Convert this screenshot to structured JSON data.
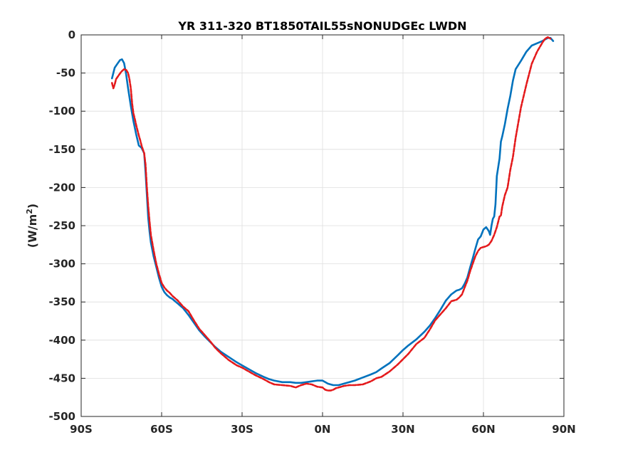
{
  "chart_data": {
    "type": "line",
    "title": "YR 311-320 BT1850TAIL55sNONUDGEc LWDN",
    "xlabel": "",
    "ylabel": "(W/m",
    "ylabel_superscript": "2",
    "ylabel_suffix": ")",
    "xlim": [
      -90,
      90
    ],
    "ylim": [
      -500,
      0
    ],
    "grid": true,
    "xticks": [
      -90,
      -60,
      -30,
      0,
      30,
      60,
      90
    ],
    "xtick_labels": [
      "90S",
      "60S",
      "30S",
      "0N",
      "30N",
      "60N",
      "90N"
    ],
    "yticks": [
      0,
      -50,
      -100,
      -150,
      -200,
      -250,
      -300,
      -350,
      -400,
      -450,
      -500
    ],
    "ytick_labels": [
      "0",
      "-50",
      "-100",
      "-150",
      "-200",
      "-250",
      "-300",
      "-350",
      "-400",
      "-450",
      "-500"
    ],
    "series": [
      {
        "color": "#0072BD",
        "style": "solid",
        "x": [
          -78.5,
          -77.5,
          -76.5,
          -75.5,
          -74.8,
          -74,
          -73.3,
          -72.5,
          -71.5,
          -70.5,
          -69.5,
          -68.5,
          -67.5,
          -66.5,
          -66,
          -65.5,
          -65,
          -64.5,
          -64,
          -63,
          -62,
          -61,
          -60,
          -59,
          -58,
          -57,
          -56,
          -55,
          -54,
          -52,
          -50,
          -48,
          -46,
          -44,
          -42,
          -40,
          -38,
          -35,
          -32,
          -30,
          -28,
          -25,
          -22,
          -20,
          -18,
          -15,
          -12,
          -10,
          -8,
          -6,
          -4,
          -2,
          0,
          1,
          2,
          3,
          4,
          5,
          6,
          8,
          10,
          12,
          15,
          18,
          20,
          22,
          25,
          28,
          30,
          32,
          35,
          38,
          40,
          42,
          44,
          46,
          48,
          50,
          51,
          52,
          53,
          54,
          55,
          56,
          57,
          58,
          59,
          60,
          61,
          62,
          62.5,
          63,
          63.5,
          64,
          64.5,
          65,
          66,
          66.5,
          67,
          68,
          69,
          70,
          71,
          72,
          74,
          76,
          78,
          80,
          82,
          83,
          84,
          85,
          86
        ],
        "y": [
          -57,
          -43,
          -38,
          -33,
          -32,
          -37,
          -50,
          -70,
          -93,
          -113,
          -130,
          -145,
          -148,
          -155,
          -180,
          -210,
          -240,
          -258,
          -272,
          -290,
          -304,
          -318,
          -330,
          -337,
          -341,
          -344,
          -346,
          -349,
          -352,
          -358,
          -367,
          -377,
          -387,
          -395,
          -402,
          -409,
          -415,
          -422,
          -429,
          -433,
          -437,
          -443,
          -448,
          -451,
          -453,
          -455,
          -455,
          -456,
          -456,
          -455,
          -454,
          -453,
          -453,
          -455,
          -457,
          -458,
          -459,
          -459,
          -459,
          -457,
          -455,
          -453,
          -449,
          -445,
          -442,
          -437,
          -430,
          -420,
          -413,
          -407,
          -399,
          -389,
          -381,
          -371,
          -360,
          -348,
          -340,
          -335,
          -334,
          -332,
          -326,
          -318,
          -305,
          -293,
          -280,
          -268,
          -264,
          -255,
          -252,
          -257,
          -262,
          -250,
          -241,
          -238,
          -222,
          -185,
          -162,
          -140,
          -133,
          -117,
          -97,
          -80,
          -60,
          -45,
          -34,
          -22,
          -14,
          -11,
          -8,
          -6,
          -4,
          -4,
          -8
        ]
      },
      {
        "color": "#E41A1C",
        "style": "dashed",
        "x": [
          -78.5,
          -78,
          -77.5,
          -77,
          -76,
          -75,
          -74,
          -73.2,
          -72.5,
          -72,
          -71.5,
          -71,
          -70.5,
          -70,
          -69.5,
          -69,
          -68.5,
          -68,
          -67.5,
          -67,
          -66.5,
          -66,
          -65.5,
          -65,
          -64.5,
          -64,
          -63,
          -62,
          -61,
          -60,
          -59,
          -58,
          -57,
          -56,
          -55,
          -54,
          -52,
          -50,
          -48,
          -46,
          -44,
          -42,
          -40,
          -38,
          -35,
          -32,
          -30,
          -28,
          -25,
          -22,
          -20,
          -18,
          -15,
          -12,
          -10,
          -8,
          -6,
          -4,
          -2,
          0,
          1,
          2,
          3,
          4,
          5,
          6,
          8,
          10,
          12,
          15,
          18,
          20,
          22,
          25,
          28,
          30,
          32,
          35,
          38,
          40,
          42,
          44,
          46,
          48,
          50,
          51,
          52,
          53,
          54,
          55,
          56,
          57,
          58,
          59,
          60,
          61,
          62,
          63,
          64,
          65,
          66,
          66.5,
          67,
          68,
          69,
          70,
          71,
          72,
          74,
          76,
          78,
          80,
          82,
          83,
          84,
          85
        ],
        "y": [
          -63,
          -70,
          -65,
          -58,
          -53,
          -48,
          -45,
          -46,
          -50,
          -58,
          -70,
          -90,
          -103,
          -110,
          -118,
          -125,
          -132,
          -138,
          -145,
          -150,
          -155,
          -170,
          -200,
          -225,
          -245,
          -262,
          -282,
          -300,
          -313,
          -325,
          -331,
          -335,
          -338,
          -342,
          -345,
          -348,
          -356,
          -362,
          -374,
          -385,
          -393,
          -401,
          -410,
          -417,
          -426,
          -433,
          -436,
          -440,
          -446,
          -451,
          -455,
          -458,
          -459,
          -460,
          -462,
          -459,
          -457,
          -458,
          -461,
          -462,
          -465,
          -466,
          -466,
          -465,
          -463,
          -462,
          -460,
          -459,
          -459,
          -458,
          -454,
          -450,
          -448,
          -441,
          -432,
          -425,
          -418,
          -405,
          -397,
          -386,
          -374,
          -366,
          -358,
          -349,
          -347,
          -344,
          -340,
          -331,
          -322,
          -310,
          -300,
          -290,
          -283,
          -279,
          -278,
          -277,
          -275,
          -270,
          -262,
          -252,
          -238,
          -237,
          -225,
          -210,
          -200,
          -177,
          -160,
          -135,
          -95,
          -65,
          -38,
          -22,
          -10,
          -5,
          -3,
          -5
        ]
      }
    ]
  }
}
